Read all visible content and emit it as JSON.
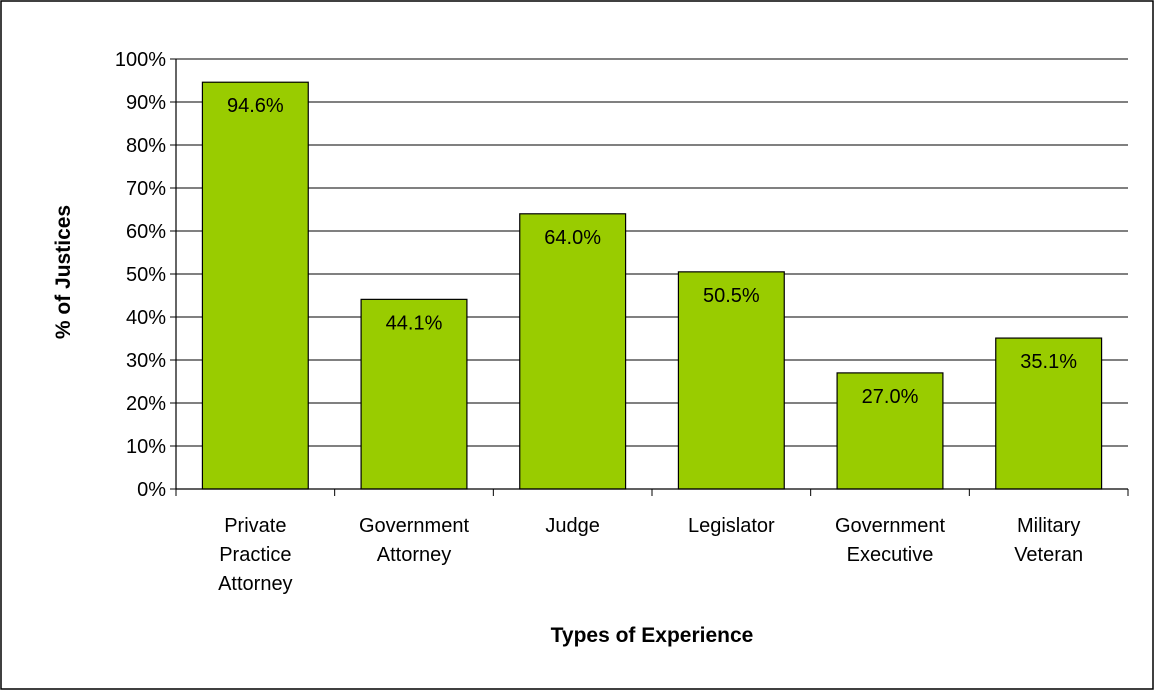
{
  "chart_data": {
    "type": "bar",
    "title": "",
    "xlabel": "Types of Experience",
    "ylabel": "% of Justices",
    "ylim": [
      0,
      100
    ],
    "yticks": [
      0,
      10,
      20,
      30,
      40,
      50,
      60,
      70,
      80,
      90,
      100
    ],
    "ytick_labels": [
      "0%",
      "10%",
      "20%",
      "30%",
      "40%",
      "50%",
      "60%",
      "70%",
      "80%",
      "90%",
      "100%"
    ],
    "categories": [
      [
        "Private",
        "Practice",
        "Attorney"
      ],
      [
        "Government",
        "Attorney"
      ],
      [
        "Judge"
      ],
      [
        "Legislator"
      ],
      [
        "Government",
        "Executive"
      ],
      [
        "Military",
        "Veteran"
      ]
    ],
    "values": [
      94.6,
      44.1,
      64.0,
      50.5,
      27.0,
      35.1
    ],
    "data_labels": [
      "94.6%",
      "44.1%",
      "64.0%",
      "50.5%",
      "27.0%",
      "35.1%"
    ],
    "grid": true,
    "legend": "none",
    "bar_color": "#99cc00",
    "bar_edge_color": "#000000"
  }
}
